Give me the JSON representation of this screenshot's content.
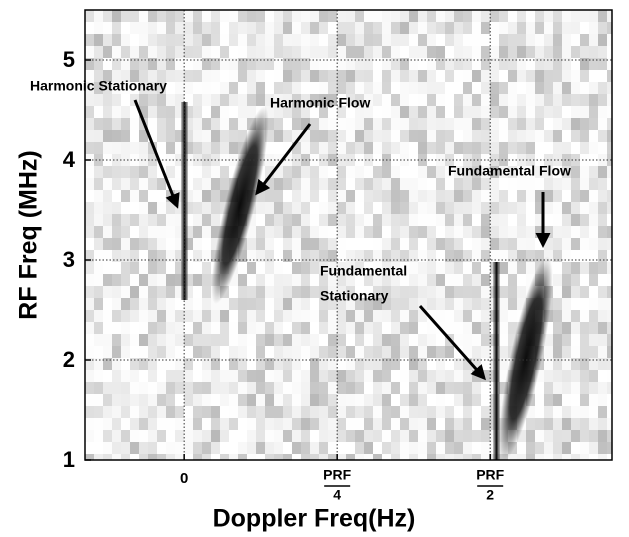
{
  "chart_data": {
    "type": "spectrogram",
    "xlabel": "Doppler Freq(Hz)",
    "ylabel": "RF Freq (MHz)",
    "xlim": [
      -0.162,
      0.699
    ],
    "ylim": [
      1,
      5.5
    ],
    "xticks": [
      0,
      {
        "value": 0.25,
        "label": {
          "numerator": "PRF",
          "denominator": "4"
        }
      },
      {
        "value": 0.5,
        "label": {
          "numerator": "PRF",
          "denominator": "2"
        }
      }
    ],
    "yticks": [
      1,
      2,
      3,
      4,
      5
    ],
    "grid": true,
    "annotations": [
      {
        "text": "Harmonic Stationary"
      },
      {
        "text": "Harmonic Flow"
      },
      {
        "text": "Fundamental Flow"
      },
      {
        "lines": [
          "Fundamental",
          "Stationary"
        ]
      }
    ]
  }
}
